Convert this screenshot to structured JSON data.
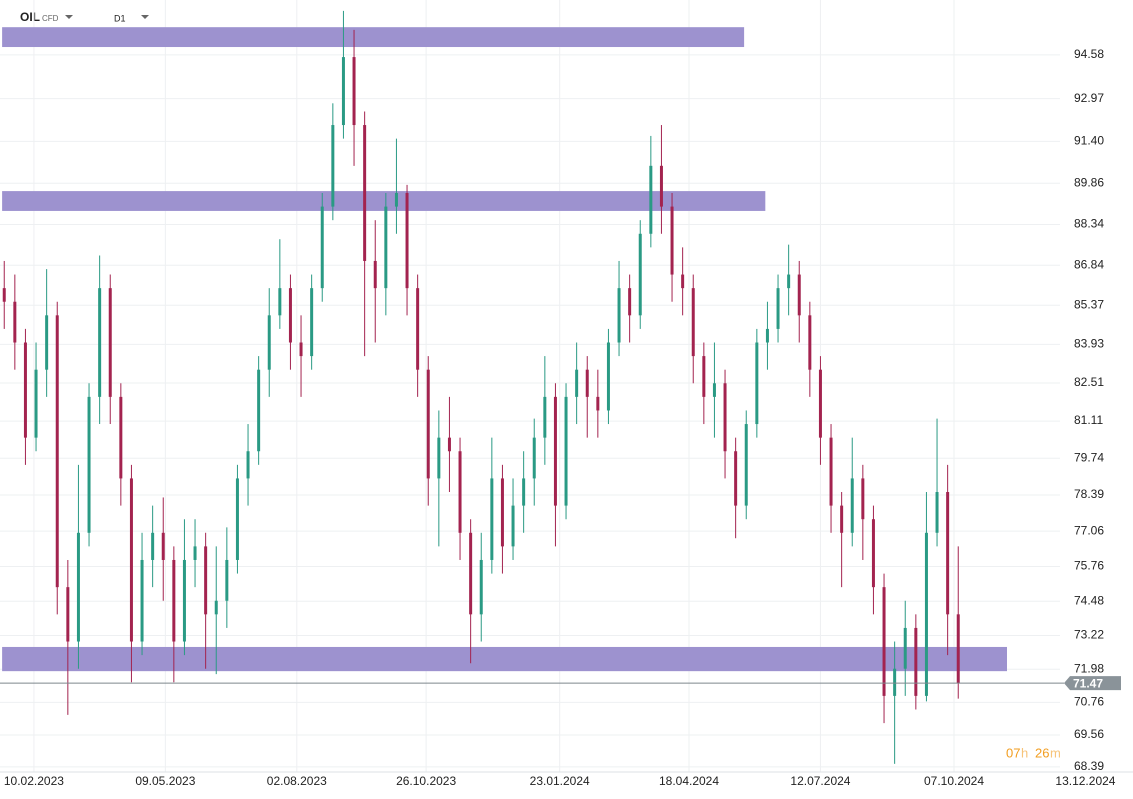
{
  "header": {
    "symbol": "OIL",
    "instrument": "CFD",
    "timeframe": "D1"
  },
  "chart_data": {
    "type": "candlestick",
    "x": [
      2,
      7,
      12,
      17,
      22,
      27,
      32,
      37,
      42,
      47,
      52,
      57,
      62,
      67,
      72,
      77,
      82,
      87,
      92,
      97,
      102,
      107,
      112,
      117,
      122,
      127,
      132,
      137,
      142,
      147,
      152,
      157,
      162,
      167,
      172,
      177,
      182,
      187,
      192,
      197,
      202,
      207,
      212,
      217,
      222,
      227,
      232,
      237,
      242,
      247,
      252,
      257,
      262,
      267,
      272,
      277,
      282,
      287,
      292,
      297,
      302,
      307,
      312,
      317,
      322,
      327,
      332,
      337,
      342,
      347,
      352,
      357,
      362,
      367,
      372,
      377,
      382,
      387,
      392,
      397,
      402,
      407,
      412,
      417,
      422,
      427,
      432,
      437,
      442,
      447,
      452
    ],
    "open": [
      86,
      85.5,
      84,
      80.5,
      83,
      85,
      75,
      73,
      77,
      82,
      86,
      82,
      79,
      73,
      76,
      77,
      76,
      73,
      76,
      76.5,
      74,
      74.5,
      76,
      79,
      80,
      83,
      85,
      86,
      84,
      83.5,
      86,
      89,
      92,
      94.5,
      92,
      87,
      86,
      89,
      89.5,
      86,
      83,
      79,
      80.5,
      80,
      77,
      74,
      76,
      79,
      76.5,
      78,
      79,
      80.5,
      82,
      78,
      82,
      83,
      82,
      81.5,
      84,
      86,
      85,
      88,
      90.5,
      89,
      86.5,
      86,
      83.5,
      82,
      82.5,
      80,
      78,
      81,
      84,
      84.5,
      86,
      86.5,
      85,
      83,
      80.5,
      78,
      77,
      79,
      77.5,
      75,
      71,
      72,
      73.5,
      71,
      77,
      78.5,
      74
    ],
    "high": [
      87,
      86.5,
      84.5,
      84,
      86.7,
      85.5,
      76,
      79.5,
      82.5,
      87.2,
      86.5,
      82.5,
      79.5,
      77,
      78,
      78.3,
      76.5,
      77.5,
      77.5,
      77,
      76.5,
      77.2,
      79.5,
      81,
      83.5,
      86,
      87.8,
      86.5,
      85,
      86.5,
      89.5,
      92.8,
      96.2,
      95.5,
      92.5,
      88.5,
      89.5,
      91.5,
      89.8,
      86.5,
      83.5,
      81.5,
      82,
      80.5,
      77.5,
      77,
      80.5,
      79.5,
      79,
      80,
      81.2,
      83.5,
      82.5,
      82.5,
      84,
      83.5,
      83,
      84.5,
      87,
      86.5,
      88.5,
      91.6,
      92,
      89.5,
      87.5,
      86.5,
      84,
      84,
      83,
      80.5,
      81.5,
      84.5,
      85.5,
      86.5,
      87.6,
      87,
      85.5,
      83.5,
      81,
      78.5,
      80.5,
      79.5,
      78,
      75.5,
      73,
      74.5,
      74,
      78.5,
      81.2,
      79.5,
      76.5
    ],
    "low": [
      84.5,
      83,
      79.5,
      80,
      82,
      74,
      70.3,
      72,
      76.5,
      81,
      81,
      78,
      71.5,
      72.5,
      75,
      74.5,
      71.5,
      72.5,
      75,
      72,
      71.8,
      73.5,
      75.5,
      78,
      79.5,
      82,
      84.5,
      83,
      82,
      83,
      85.5,
      88.5,
      91.5,
      90.5,
      83.5,
      84,
      85,
      88,
      85,
      82,
      78,
      76.5,
      78.5,
      76,
      72.2,
      73,
      75.5,
      75.5,
      76,
      77,
      78,
      79.5,
      76.5,
      77.5,
      81,
      80.5,
      80.5,
      81,
      83.5,
      84,
      84.5,
      87.5,
      88,
      85.5,
      85,
      82.5,
      81,
      80.5,
      79,
      76.8,
      77.5,
      80.5,
      83,
      84,
      85,
      84,
      82,
      79.5,
      77,
      75,
      76.5,
      76,
      74,
      70,
      68.5,
      71,
      70.5,
      70.8,
      76.5,
      72.5,
      70.9
    ],
    "close": [
      85.5,
      84,
      80.5,
      83,
      85,
      75,
      73,
      77,
      82,
      86,
      82,
      79,
      73,
      76,
      77,
      76,
      73,
      76,
      76.5,
      74,
      74.5,
      76,
      79,
      80,
      83,
      85,
      86,
      84,
      83.5,
      86,
      89,
      92,
      94.5,
      92,
      87,
      86,
      89,
      89.5,
      86,
      83,
      79,
      80.5,
      80,
      77,
      74,
      76,
      79,
      76.5,
      78,
      79,
      80.5,
      82,
      78,
      82,
      83,
      82,
      81.5,
      84,
      86,
      85,
      88,
      90.5,
      89,
      86.5,
      86,
      83.5,
      82,
      82.5,
      80,
      78,
      81,
      84,
      84.5,
      86,
      86.5,
      85,
      83,
      80.5,
      78,
      77,
      79,
      77.5,
      75,
      71,
      72,
      73.5,
      71,
      77,
      78.5,
      74,
      71.47
    ],
    "up_color": "#2a9a84",
    "down_color": "#a3234f",
    "zones": [
      {
        "x": [
          1,
          351
        ],
        "y": [
          94.87,
          95.6
        ]
      },
      {
        "x": [
          1,
          361
        ],
        "y": [
          88.84,
          89.57
        ]
      },
      {
        "x": [
          1,
          475
        ],
        "y": [
          71.91,
          72.8
        ]
      }
    ],
    "zone_color": "#9d92cf",
    "last_price": 71.47,
    "xlim": [
      0,
      500
    ],
    "ylim": [
      68.2,
      96.6
    ],
    "xticks": [
      {
        "value": 16,
        "label": "10.02.2023"
      },
      {
        "value": 78,
        "label": "09.05.2023"
      },
      {
        "value": 140,
        "label": "02.08.2023"
      },
      {
        "value": 201,
        "label": "26.10.2023"
      },
      {
        "value": 264,
        "label": "23.01.2024"
      },
      {
        "value": 325,
        "label": "18.04.2024"
      },
      {
        "value": 387,
        "label": "12.07.2024"
      },
      {
        "value": 450,
        "label": "07.10.2024"
      },
      {
        "value": 512,
        "label": "13.12.2024"
      }
    ],
    "yticks": [
      94.58,
      92.97,
      {
        "value": 91.4,
        "label": "91.40"
      },
      89.86,
      88.34,
      86.84,
      85.37,
      83.93,
      82.51,
      81.11,
      79.74,
      78.39,
      77.06,
      75.76,
      74.48,
      73.22,
      71.98,
      70.76,
      69.56,
      68.39
    ],
    "grid": true,
    "timer": {
      "hours": "07",
      "h": "h",
      "minutes": "26",
      "m": "m"
    }
  }
}
